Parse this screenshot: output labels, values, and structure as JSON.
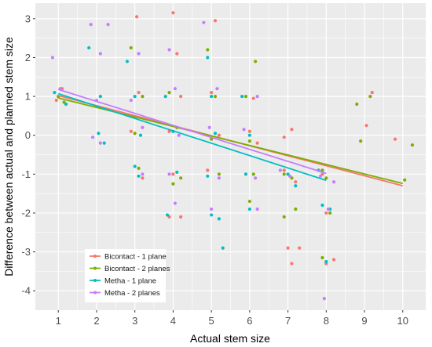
{
  "chart_data": {
    "type": "scatter",
    "xlabel": "Actual stem size",
    "ylabel": "Difference between actual and planned stem size",
    "xlim": [
      0.4,
      10.6
    ],
    "ylim": [
      -4.5,
      3.4
    ],
    "x_ticks": [
      "1",
      "2",
      "3",
      "4",
      "5",
      "6",
      "7",
      "8",
      "9",
      "10"
    ],
    "y_ticks": [
      "-4",
      "-3",
      "-2",
      "-1",
      "0",
      "1",
      "2",
      "3"
    ],
    "grid": true,
    "legend_position": "bottom-left",
    "colors": {
      "panel": "#ebebeb",
      "grid": "#ffffff",
      "bicontact1": "#F8766D",
      "bicontact2": "#7CAE00",
      "metha1": "#00BFC4",
      "metha2": "#C77CFF"
    },
    "series": [
      {
        "name": "Bicontact - 1 plane",
        "color": "#F8766D",
        "trend": [
          [
            1,
            1.02
          ],
          [
            10,
            -1.3
          ]
        ],
        "points": [
          [
            1.1,
            1.2
          ],
          [
            0.95,
            0.9
          ],
          [
            3.1,
            1.1
          ],
          [
            2.9,
            0.1
          ],
          [
            3.2,
            -1.1
          ],
          [
            3.05,
            3.05
          ],
          [
            4.0,
            3.15
          ],
          [
            4.1,
            2.1
          ],
          [
            4.2,
            1.0
          ],
          [
            3.9,
            0.1
          ],
          [
            4.0,
            -1.0
          ],
          [
            3.9,
            -2.1
          ],
          [
            4.2,
            -2.1
          ],
          [
            5.1,
            2.95
          ],
          [
            5.0,
            1.1
          ],
          [
            5.2,
            0.0
          ],
          [
            4.9,
            -0.9
          ],
          [
            6.1,
            0.95
          ],
          [
            6.0,
            0.1
          ],
          [
            6.2,
            -0.2
          ],
          [
            6.9,
            -0.05
          ],
          [
            7.1,
            0.15
          ],
          [
            6.9,
            -0.9
          ],
          [
            7.2,
            -1.2
          ],
          [
            7.0,
            -2.9
          ],
          [
            7.3,
            -2.9
          ],
          [
            7.1,
            -3.3
          ],
          [
            7.9,
            -1.0
          ],
          [
            8.0,
            -2.0
          ],
          [
            8.2,
            -3.2
          ],
          [
            8.0,
            -3.3
          ],
          [
            9.2,
            1.1
          ],
          [
            9.05,
            0.25
          ],
          [
            9.8,
            -0.1
          ]
        ]
      },
      {
        "name": "Bicontact - 2 planes",
        "color": "#7CAE00",
        "trend": [
          [
            1,
            0.96
          ],
          [
            10,
            -1.24
          ]
        ],
        "points": [
          [
            1.0,
            1.0
          ],
          [
            1.15,
            0.85
          ],
          [
            2.9,
            2.25
          ],
          [
            3.2,
            1.0
          ],
          [
            3.0,
            0.05
          ],
          [
            3.1,
            -0.85
          ],
          [
            3.9,
            1.1
          ],
          [
            4.1,
            0.2
          ],
          [
            4.2,
            -1.1
          ],
          [
            4.0,
            -1.25
          ],
          [
            4.9,
            2.2
          ],
          [
            5.1,
            1.0
          ],
          [
            5.0,
            -0.1
          ],
          [
            5.2,
            -1.0
          ],
          [
            5.9,
            1.0
          ],
          [
            6.15,
            1.9
          ],
          [
            6.0,
            -0.15
          ],
          [
            6.1,
            -1.0
          ],
          [
            6.0,
            -1.7
          ],
          [
            6.9,
            -1.0
          ],
          [
            7.1,
            -1.1
          ],
          [
            6.9,
            -2.1
          ],
          [
            7.2,
            -1.9
          ],
          [
            7.9,
            -0.9
          ],
          [
            8.0,
            -1.1
          ],
          [
            7.9,
            -3.15
          ],
          [
            8.1,
            -2.0
          ],
          [
            8.8,
            0.8
          ],
          [
            8.9,
            -0.15
          ],
          [
            9.15,
            1.0
          ],
          [
            10.25,
            -0.25
          ],
          [
            10.05,
            -1.15
          ]
        ]
      },
      {
        "name": "Metha - 1 plane",
        "color": "#00BFC4",
        "trend": [
          [
            1,
            1.07
          ],
          [
            8,
            -1.16
          ]
        ],
        "points": [
          [
            0.9,
            1.1
          ],
          [
            1.2,
            0.8
          ],
          [
            1.8,
            2.25
          ],
          [
            2.1,
            1.0
          ],
          [
            2.05,
            0.05
          ],
          [
            2.2,
            -0.2
          ],
          [
            2.8,
            1.9
          ],
          [
            3.0,
            1.0
          ],
          [
            3.15,
            0.0
          ],
          [
            3.0,
            -0.8
          ],
          [
            3.1,
            -1.05
          ],
          [
            3.8,
            1.0
          ],
          [
            4.0,
            0.1
          ],
          [
            4.1,
            -0.95
          ],
          [
            3.85,
            -2.05
          ],
          [
            4.9,
            2.0
          ],
          [
            5.0,
            1.0
          ],
          [
            5.1,
            0.05
          ],
          [
            4.9,
            -1.05
          ],
          [
            5.0,
            -2.05
          ],
          [
            5.2,
            -2.15
          ],
          [
            5.3,
            -2.9
          ],
          [
            5.8,
            1.0
          ],
          [
            6.0,
            0.0
          ],
          [
            5.9,
            -1.0
          ],
          [
            6.0,
            -1.9
          ],
          [
            7.0,
            -1.0
          ],
          [
            7.2,
            -1.3
          ],
          [
            7.8,
            -0.9
          ],
          [
            7.9,
            -1.8
          ],
          [
            8.1,
            -1.9
          ],
          [
            8.0,
            -3.25
          ]
        ]
      },
      {
        "name": "Metha - 2 planes",
        "color": "#C77CFF",
        "trend": [
          [
            1,
            1.18
          ],
          [
            8,
            -0.98
          ]
        ],
        "points": [
          [
            0.85,
            2.0
          ],
          [
            1.05,
            1.2
          ],
          [
            1.85,
            2.85
          ],
          [
            2.3,
            2.85
          ],
          [
            2.1,
            2.1
          ],
          [
            2.0,
            0.9
          ],
          [
            1.9,
            -0.05
          ],
          [
            2.1,
            -0.2
          ],
          [
            3.1,
            2.1
          ],
          [
            2.9,
            0.9
          ],
          [
            3.2,
            0.2
          ],
          [
            3.2,
            -1.0
          ],
          [
            3.9,
            2.2
          ],
          [
            4.05,
            1.2
          ],
          [
            4.15,
            0.0
          ],
          [
            3.9,
            -1.0
          ],
          [
            4.05,
            -1.75
          ],
          [
            4.8,
            2.9
          ],
          [
            5.15,
            1.2
          ],
          [
            4.95,
            0.2
          ],
          [
            5.2,
            -1.1
          ],
          [
            5.0,
            -1.9
          ],
          [
            6.2,
            1.0
          ],
          [
            5.85,
            0.15
          ],
          [
            6.15,
            -1.1
          ],
          [
            6.2,
            -1.9
          ],
          [
            6.8,
            -0.9
          ],
          [
            7.05,
            -1.05
          ],
          [
            7.85,
            -1.05
          ],
          [
            8.05,
            -1.9
          ],
          [
            7.95,
            -4.2
          ],
          [
            8.2,
            -1.2
          ]
        ]
      }
    ]
  }
}
